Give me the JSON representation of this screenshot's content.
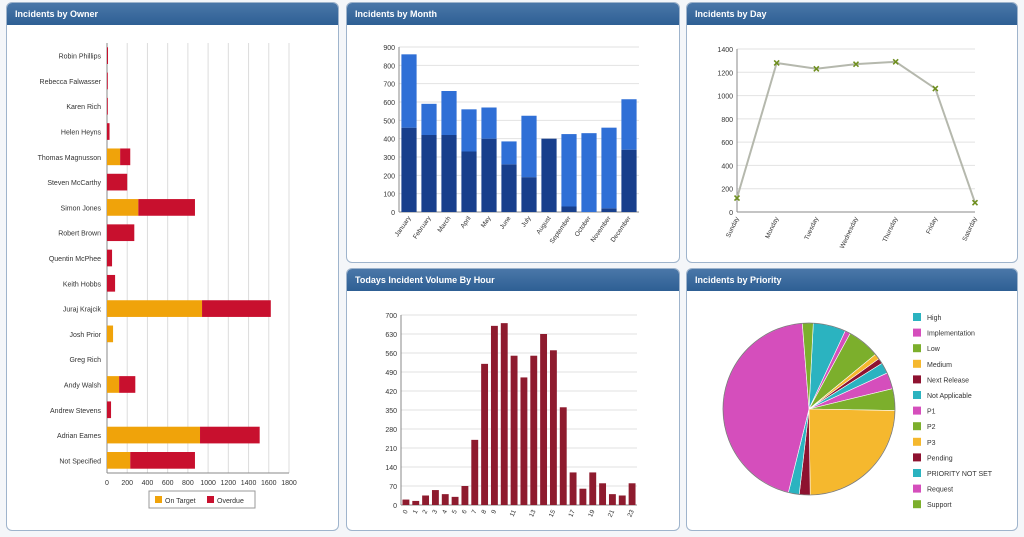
{
  "panels": {
    "owner_title": "Incidents by Owner",
    "month_title": "Incidents by Month",
    "day_title": "Incidents by Day",
    "hour_title": "Todays Incident Volume By Hour",
    "priority_title": "Incidents by Priority"
  },
  "colors": {
    "on_target": "#f0a30a",
    "overdue": "#c8102e",
    "month_top": "#2f6fd6",
    "month_bottom": "#183f8c",
    "day_line": "#b5b8ad",
    "day_marker": "#6f8f1f",
    "hour_bar": "#8e1b2e"
  },
  "chart_data": [
    {
      "id": "owner",
      "type": "bar",
      "orientation": "horizontal",
      "stacked": true,
      "categories": [
        "Robin Phillips",
        "Rebecca Falwasser",
        "Karen Rich",
        "Helen Heyns",
        "Thomas Magnusson",
        "Steven McCarthy",
        "Simon Jones",
        "Robert Brown",
        "Quentin McPhee",
        "Keith Hobbs",
        "Juraj Krajcik",
        "Josh Prior",
        "Greg Rich",
        "Andy Walsh",
        "Andrew Stevens",
        "Adrian Eames",
        "Not Specified"
      ],
      "series": [
        {
          "name": "On Target",
          "values": [
            0,
            0,
            0,
            0,
            130,
            0,
            310,
            0,
            0,
            0,
            940,
            60,
            0,
            120,
            0,
            920,
            230
          ]
        },
        {
          "name": "Overdue",
          "values": [
            10,
            8,
            8,
            25,
            100,
            200,
            560,
            270,
            50,
            80,
            680,
            0,
            0,
            160,
            40,
            590,
            640
          ]
        }
      ],
      "xticks": [
        "0",
        "200",
        "400",
        "600",
        "800",
        "1000",
        "1200",
        "1400",
        "1600",
        "1800"
      ],
      "xlim": [
        0,
        1800
      ],
      "legend": "bottom"
    },
    {
      "id": "month",
      "type": "bar",
      "stacked": true,
      "categories": [
        "January",
        "February",
        "March",
        "April",
        "May",
        "June",
        "July",
        "August",
        "September",
        "October",
        "November",
        "December"
      ],
      "series": [
        {
          "values": [
            460,
            420,
            420,
            330,
            400,
            260,
            190,
            400,
            30,
            0,
            20,
            340
          ]
        },
        {
          "values": [
            400,
            170,
            240,
            230,
            170,
            125,
            335,
            0,
            395,
            430,
            440,
            275
          ]
        }
      ],
      "yticks": [
        "0",
        "100",
        "200",
        "300",
        "400",
        "500",
        "600",
        "700",
        "800",
        "900"
      ],
      "ylim": [
        0,
        900
      ],
      "legend": "none"
    },
    {
      "id": "day",
      "type": "line",
      "categories": [
        "Sunday",
        "Monday",
        "Tuesday",
        "Wednesday",
        "Thursday",
        "Friday",
        "Saturday"
      ],
      "values": [
        120,
        1280,
        1230,
        1270,
        1290,
        1060,
        80
      ],
      "yticks": [
        "0",
        "200",
        "400",
        "600",
        "800",
        "1000",
        "1200",
        "1400"
      ],
      "ylim": [
        0,
        1400
      ],
      "legend": "none"
    },
    {
      "id": "hour",
      "type": "bar",
      "categories": [
        "0",
        "1",
        "2",
        "3",
        "4",
        "5",
        "6",
        "7",
        "8",
        "9",
        "10",
        "11",
        "12",
        "13",
        "14",
        "15",
        "16",
        "17",
        "18",
        "19",
        "20",
        "21",
        "22",
        "23"
      ],
      "values": [
        20,
        15,
        35,
        55,
        40,
        30,
        70,
        240,
        520,
        660,
        670,
        550,
        470,
        550,
        630,
        570,
        360,
        120,
        60,
        120,
        80,
        40,
        35,
        80
      ],
      "xticks": [
        "0",
        "1",
        "2",
        "3",
        "4",
        "5",
        "6",
        "7",
        "8",
        "9",
        "11",
        "13",
        "15",
        "17",
        "19",
        "21",
        "23"
      ],
      "yticks": [
        "0",
        "70",
        "140",
        "210",
        "280",
        "350",
        "420",
        "490",
        "560",
        "630",
        "700"
      ],
      "ylim": [
        0,
        700
      ],
      "legend": "none"
    },
    {
      "id": "priority",
      "type": "pie",
      "labels": [
        "High",
        "Implementation",
        "Low",
        "Medium",
        "Next Release",
        "Not Applicable",
        "P1",
        "P2",
        "P3",
        "Pending",
        "PRIORITY NOT SET",
        "Request",
        "Support"
      ],
      "values": [
        6,
        1,
        6,
        1,
        1,
        2,
        3,
        4,
        24,
        2,
        2,
        44,
        2
      ],
      "colors": [
        "#2bb3c0",
        "#d54ebc",
        "#7caf2c",
        "#f5b82e",
        "#8e1230",
        "#2bb3c0",
        "#d54ebc",
        "#7caf2c",
        "#f5b82e",
        "#8e1230",
        "#2bb3c0",
        "#d54ebc",
        "#7caf2c"
      ],
      "legend": "right"
    }
  ]
}
